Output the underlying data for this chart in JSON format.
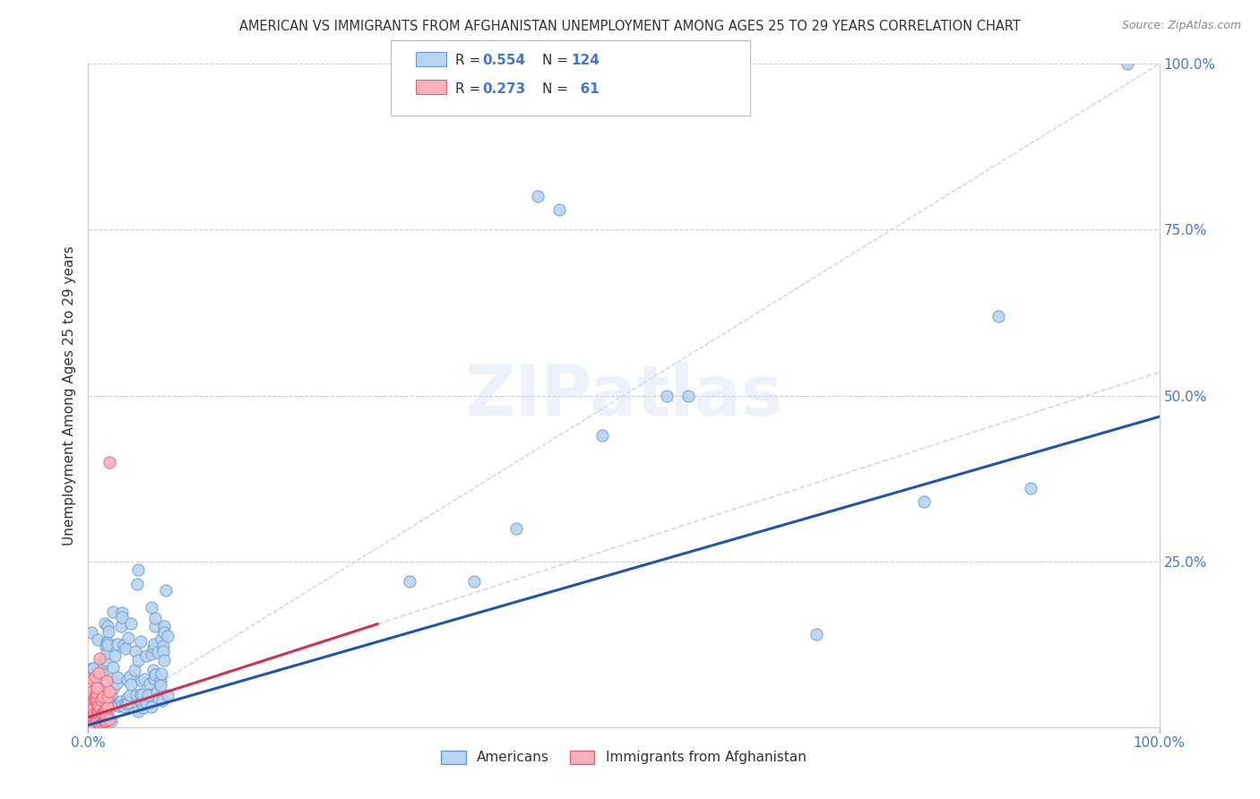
{
  "title": "AMERICAN VS IMMIGRANTS FROM AFGHANISTAN UNEMPLOYMENT AMONG AGES 25 TO 29 YEARS CORRELATION CHART",
  "source": "Source: ZipAtlas.com",
  "ylabel": "Unemployment Among Ages 25 to 29 years",
  "legend_labels": [
    "Americans",
    "Immigrants from Afghanistan"
  ],
  "r_american": 0.554,
  "n_american": 124,
  "r_afghan": 0.273,
  "n_afghan": 61,
  "american_color": "#b8d4f0",
  "afghan_color": "#f8b0bc",
  "american_edge_color": "#6699cc",
  "afghan_edge_color": "#dd6677",
  "american_line_color": "#2255aa",
  "afghan_line_color": "#cc3355",
  "diagonal_color": "#ccccdd",
  "watermark": "ZIPatlas",
  "axis_bg_color": "#ffffff",
  "grid_color": "#ccccdd",
  "tick_color": "#4477cc",
  "title_color": "#333333",
  "source_color": "#888888",
  "ylabel_color": "#333333"
}
